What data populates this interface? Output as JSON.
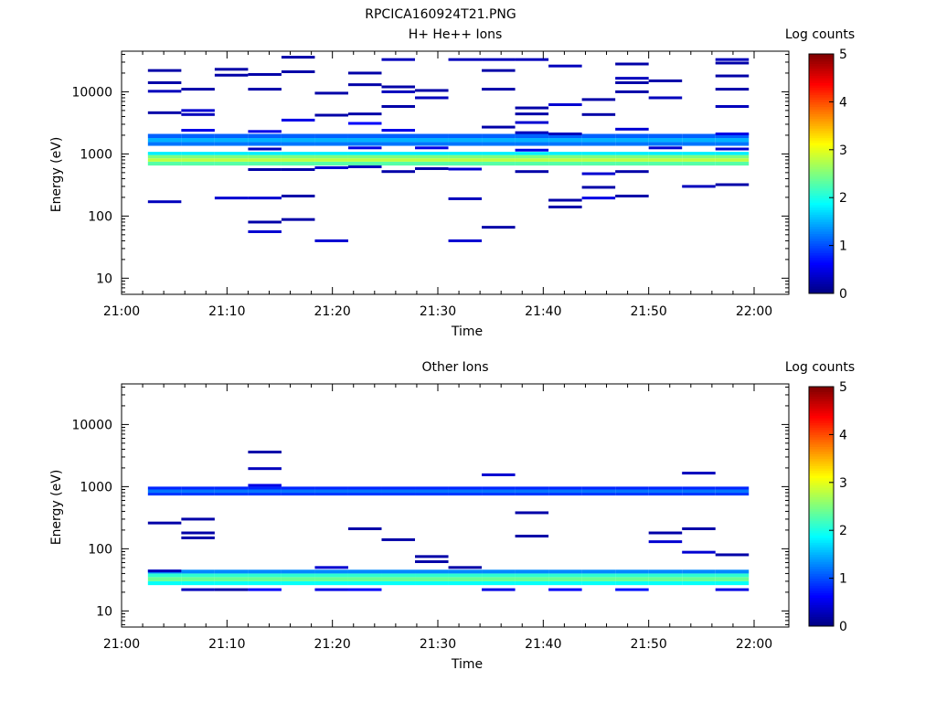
{
  "figure_title": "RPCICA160924T21.PNG",
  "colormap": [
    "#00007f",
    "#0000ff",
    "#007fff",
    "#00ffff",
    "#7fff7f",
    "#ffff00",
    "#ff7f00",
    "#ff0000",
    "#7f0000"
  ],
  "chart_data": [
    {
      "type": "heatmap",
      "title": "H+ He++ Ions",
      "xlabel": "Time",
      "ylabel": "Energy (eV)",
      "x_tick_labels": [
        "21:00",
        "21:10",
        "21:20",
        "21:30",
        "21:40",
        "21:50",
        "22:00"
      ],
      "y_scale": "log",
      "y_tick_labels": [
        "10",
        "100",
        "1000",
        "10000"
      ],
      "ylim": [
        5.5,
        45000
      ],
      "colorbar": {
        "label": "Log counts",
        "range": [
          0,
          5
        ],
        "tick_labels": [
          "0",
          "1",
          "2",
          "3",
          "4",
          "5"
        ]
      },
      "time_bins_start": [
        "21:02:30",
        "21:05:40",
        "21:08:50",
        "21:12:00",
        "21:15:10",
        "21:18:20",
        "21:21:30",
        "21:24:40",
        "21:27:50",
        "21:31:00",
        "21:34:10",
        "21:37:20",
        "21:40:30",
        "21:43:40",
        "21:46:50",
        "21:50:00",
        "21:53:10",
        "21:56:20"
      ],
      "bands": [
        {
          "e_low": 650,
          "e_high": 750,
          "value": 2.3
        },
        {
          "e_low": 750,
          "e_high": 850,
          "value": 2.8
        },
        {
          "e_low": 850,
          "e_high": 960,
          "value": 2.5
        },
        {
          "e_low": 960,
          "e_high": 1080,
          "value": 1.8
        },
        {
          "e_low": 1350,
          "e_high": 1550,
          "value": 1.2
        },
        {
          "e_low": 1550,
          "e_high": 1800,
          "value": 1.5
        },
        {
          "e_low": 1800,
          "e_high": 2100,
          "value": 1.1
        }
      ],
      "sparse_hits": [
        [
          0,
          22000,
          0.2
        ],
        [
          0,
          14000,
          0.2
        ],
        [
          0,
          10200,
          0.3
        ],
        [
          0,
          4600,
          0.2
        ],
        [
          0,
          170,
          0.3
        ],
        [
          1,
          11000,
          0.2
        ],
        [
          1,
          5000,
          0.4
        ],
        [
          1,
          4300,
          0.3
        ],
        [
          1,
          2400,
          0.5
        ],
        [
          2,
          23000,
          0.2
        ],
        [
          2,
          18500,
          0.2
        ],
        [
          2,
          195,
          0.4
        ],
        [
          3,
          19000,
          0.2
        ],
        [
          3,
          11000,
          0.2
        ],
        [
          3,
          2300,
          0.5
        ],
        [
          3,
          1200,
          0.3
        ],
        [
          3,
          560,
          0.2
        ],
        [
          3,
          195,
          0.4
        ],
        [
          3,
          80,
          0.2
        ],
        [
          3,
          56,
          0.4
        ],
        [
          4,
          36000,
          0.2
        ],
        [
          4,
          21000,
          0.2
        ],
        [
          4,
          3500,
          0.5
        ],
        [
          4,
          560,
          0.2
        ],
        [
          4,
          210,
          0.2
        ],
        [
          4,
          88,
          0.2
        ],
        [
          5,
          9500,
          0.2
        ],
        [
          5,
          4200,
          0.2
        ],
        [
          5,
          600,
          0.4
        ],
        [
          5,
          40,
          0.4
        ],
        [
          6,
          20000,
          0.2
        ],
        [
          6,
          13000,
          0.2
        ],
        [
          6,
          4400,
          0.2
        ],
        [
          6,
          3100,
          0.6
        ],
        [
          6,
          1250,
          0.5
        ],
        [
          6,
          620,
          0.3
        ],
        [
          7,
          33000,
          0.3
        ],
        [
          7,
          12000,
          0.2
        ],
        [
          7,
          10000,
          0.3
        ],
        [
          7,
          5800,
          0.2
        ],
        [
          7,
          2400,
          0.5
        ],
        [
          7,
          520,
          0.2
        ],
        [
          8,
          10500,
          0.2
        ],
        [
          8,
          8000,
          0.3
        ],
        [
          8,
          1250,
          0.5
        ],
        [
          8,
          580,
          0.2
        ],
        [
          9,
          33000,
          0.3
        ],
        [
          9,
          570,
          0.4
        ],
        [
          9,
          190,
          0.3
        ],
        [
          9,
          40,
          0.4
        ],
        [
          10,
          33000,
          0.3
        ],
        [
          10,
          22000,
          0.2
        ],
        [
          10,
          11000,
          0.2
        ],
        [
          10,
          2700,
          0.2
        ],
        [
          10,
          66,
          0.2
        ],
        [
          11,
          33000,
          0.3
        ],
        [
          11,
          5500,
          0.2
        ],
        [
          11,
          4400,
          0.2
        ],
        [
          11,
          3200,
          0.4
        ],
        [
          11,
          2200,
          0.3
        ],
        [
          11,
          1150,
          0.5
        ],
        [
          11,
          520,
          0.2
        ],
        [
          12,
          26000,
          0.3
        ],
        [
          12,
          6200,
          0.4
        ],
        [
          12,
          2100,
          0.3
        ],
        [
          12,
          180,
          0.2
        ],
        [
          12,
          140,
          0.2
        ],
        [
          13,
          7500,
          0.2
        ],
        [
          13,
          4300,
          0.2
        ],
        [
          13,
          480,
          0.4
        ],
        [
          13,
          290,
          0.2
        ],
        [
          13,
          195,
          0.5
        ],
        [
          14,
          28000,
          0.2
        ],
        [
          14,
          16500,
          0.3
        ],
        [
          14,
          14000,
          0.2
        ],
        [
          14,
          10000,
          0.2
        ],
        [
          14,
          2500,
          0.4
        ],
        [
          14,
          520,
          0.2
        ],
        [
          14,
          210,
          0.2
        ],
        [
          15,
          15000,
          0.2
        ],
        [
          15,
          8000,
          0.3
        ],
        [
          15,
          1250,
          0.4
        ],
        [
          16,
          300,
          0.3
        ],
        [
          17,
          33000,
          0.3
        ],
        [
          17,
          29000,
          0.2
        ],
        [
          17,
          18000,
          0.2
        ],
        [
          17,
          11000,
          0.2
        ],
        [
          17,
          5800,
          0.3
        ],
        [
          17,
          2100,
          0.5
        ],
        [
          17,
          1200,
          0.4
        ],
        [
          17,
          320,
          0.2
        ]
      ]
    },
    {
      "type": "heatmap",
      "title": "Other Ions",
      "xlabel": "Time",
      "ylabel": "Energy (eV)",
      "x_tick_labels": [
        "21:00",
        "21:10",
        "21:20",
        "21:30",
        "21:40",
        "21:50",
        "22:00"
      ],
      "y_scale": "log",
      "y_tick_labels": [
        "10",
        "100",
        "1000",
        "10000"
      ],
      "ylim": [
        5.5,
        45000
      ],
      "colorbar": {
        "label": "Log counts",
        "range": [
          0,
          5
        ],
        "tick_labels": [
          "0",
          "1",
          "2",
          "3",
          "4",
          "5"
        ]
      },
      "time_bins_start": [
        "21:02:30",
        "21:05:40",
        "21:08:50",
        "21:12:00",
        "21:15:10",
        "21:18:20",
        "21:21:30",
        "21:24:40",
        "21:27:50",
        "21:31:00",
        "21:34:10",
        "21:37:20",
        "21:40:30",
        "21:43:40",
        "21:46:50",
        "21:50:00",
        "21:53:10",
        "21:56:20"
      ],
      "bands": [
        {
          "e_low": 26,
          "e_high": 30,
          "value": 1.9
        },
        {
          "e_low": 30,
          "e_high": 35,
          "value": 2.4
        },
        {
          "e_low": 35,
          "e_high": 40,
          "value": 2.1
        },
        {
          "e_low": 40,
          "e_high": 46,
          "value": 1.3
        },
        {
          "e_low": 720,
          "e_high": 800,
          "value": 0.9
        },
        {
          "e_low": 800,
          "e_high": 900,
          "value": 1.2
        },
        {
          "e_low": 900,
          "e_high": 1000,
          "value": 0.8
        }
      ],
      "sparse_hits": [
        [
          0,
          260,
          0.2
        ],
        [
          0,
          44,
          0.3
        ],
        [
          1,
          300,
          0.2
        ],
        [
          1,
          180,
          0.2
        ],
        [
          1,
          150,
          0.2
        ],
        [
          1,
          22,
          0.3
        ],
        [
          2,
          22,
          0.2
        ],
        [
          3,
          3600,
          0.2
        ],
        [
          3,
          1950,
          0.3
        ],
        [
          3,
          1050,
          0.5
        ],
        [
          3,
          22,
          0.6
        ],
        [
          5,
          50,
          0.4
        ],
        [
          5,
          22,
          0.5
        ],
        [
          6,
          210,
          0.2
        ],
        [
          6,
          22,
          0.6
        ],
        [
          7,
          140,
          0.2
        ],
        [
          8,
          75,
          0.2
        ],
        [
          8,
          62,
          0.2
        ],
        [
          9,
          50,
          0.2
        ],
        [
          10,
          1550,
          0.4
        ],
        [
          10,
          22,
          0.5
        ],
        [
          11,
          380,
          0.2
        ],
        [
          11,
          160,
          0.2
        ],
        [
          12,
          22,
          0.6
        ],
        [
          14,
          22,
          0.7
        ],
        [
          15,
          180,
          0.2
        ],
        [
          15,
          130,
          0.4
        ],
        [
          16,
          1650,
          0.3
        ],
        [
          16,
          210,
          0.2
        ],
        [
          16,
          88,
          0.4
        ],
        [
          17,
          80,
          0.2
        ],
        [
          17,
          22,
          0.5
        ]
      ]
    }
  ]
}
